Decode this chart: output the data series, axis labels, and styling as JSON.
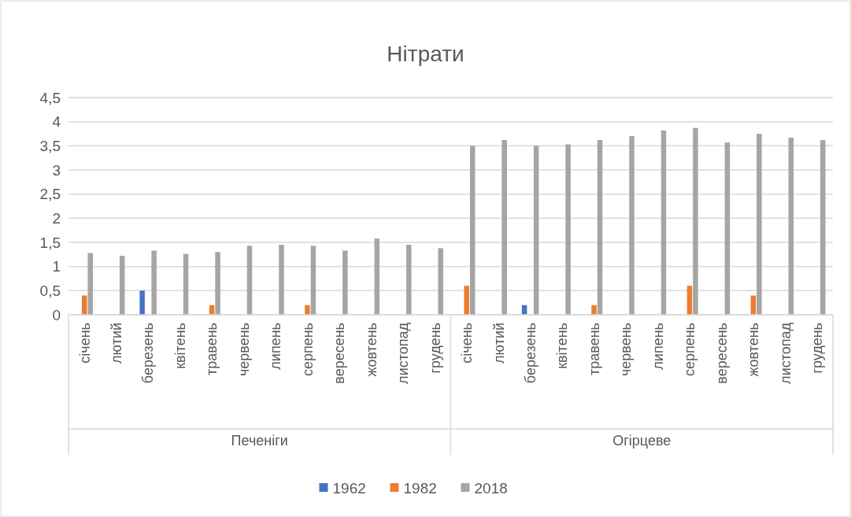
{
  "chart_data": {
    "type": "bar",
    "title": "Нітрати",
    "categories": [
      "січень",
      "лютий",
      "березень",
      "квітень",
      "травень",
      "червень",
      "липень",
      "серпень",
      "вересень",
      "жовтень",
      "листопад",
      "грудень",
      "січень",
      "лютий",
      "березень",
      "квітень",
      "травень",
      "червень",
      "липень",
      "серпень",
      "вересень",
      "жовтень",
      "листопад",
      "грудень"
    ],
    "series": [
      {
        "name": "1962",
        "color": "#4472c4",
        "values": [
          null,
          null,
          0.5,
          null,
          null,
          null,
          null,
          null,
          null,
          null,
          null,
          null,
          null,
          null,
          0.2,
          null,
          null,
          null,
          null,
          null,
          null,
          null,
          null,
          null
        ]
      },
      {
        "name": "1982",
        "color": "#ed7d31",
        "values": [
          0.4,
          null,
          null,
          null,
          0.2,
          null,
          null,
          0.2,
          null,
          null,
          null,
          null,
          0.6,
          null,
          null,
          null,
          0.2,
          null,
          null,
          0.6,
          null,
          0.4,
          null,
          null
        ]
      },
      {
        "name": "2018",
        "color": "#a5a5a5",
        "values": [
          1.28,
          1.22,
          1.33,
          1.26,
          1.3,
          1.43,
          1.45,
          1.43,
          1.33,
          1.58,
          1.45,
          1.38,
          3.5,
          3.62,
          3.5,
          3.53,
          3.62,
          3.7,
          3.82,
          3.87,
          3.57,
          3.75,
          3.67,
          3.62
        ]
      }
    ],
    "annotations": [
      "Печеніги",
      "Огірцеве"
    ],
    "ylim": [
      0,
      4.5
    ],
    "yticks": [
      0,
      {
        "value": 0.5,
        "label": "0,5"
      },
      1,
      {
        "value": 1.5,
        "label": "1,5"
      },
      2,
      {
        "value": 2.5,
        "label": "2,5"
      },
      3,
      {
        "value": 3.5,
        "label": "3,5"
      },
      4,
      {
        "value": 4.5,
        "label": "4,5"
      }
    ],
    "grid": "y",
    "legend": "bottom"
  }
}
